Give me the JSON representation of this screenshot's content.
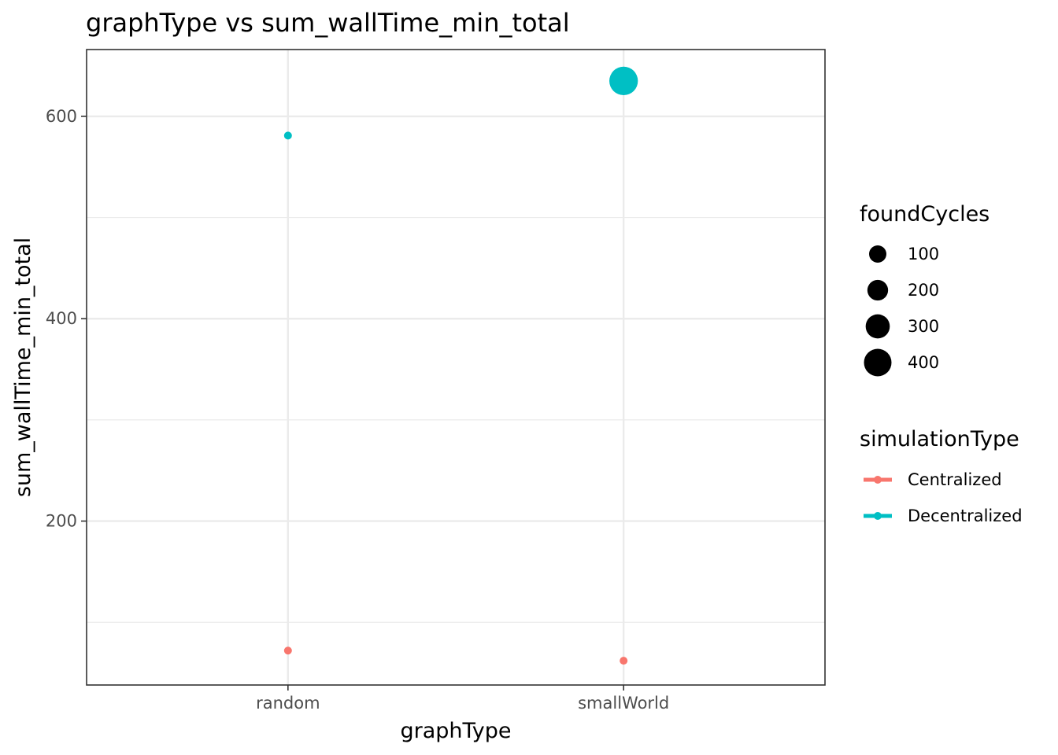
{
  "chart_data": {
    "type": "scatter",
    "title": "graphType  vs  sum_wallTime_min_total",
    "xlabel": "graphType",
    "ylabel": "sum_wallTime_min_total",
    "categories": [
      "random",
      "smallWorld"
    ],
    "ylim": [
      38,
      666
    ],
    "y_ticks": [
      200,
      400,
      600
    ],
    "grid": true,
    "size_legend": {
      "title": "foundCycles",
      "values": [
        100,
        200,
        300,
        400
      ]
    },
    "color_legend": {
      "title": "simulationType",
      "position": "right"
    },
    "series": [
      {
        "name": "Centralized",
        "color": "#F8766D",
        "points": [
          {
            "x": "random",
            "y": 72,
            "size": 1
          },
          {
            "x": "smallWorld",
            "y": 62,
            "size": 1
          }
        ]
      },
      {
        "name": "Decentralized",
        "color": "#00BFC4",
        "points": [
          {
            "x": "random",
            "y": 581,
            "size": 1
          },
          {
            "x": "smallWorld",
            "y": 635,
            "size": 430
          }
        ]
      }
    ]
  }
}
